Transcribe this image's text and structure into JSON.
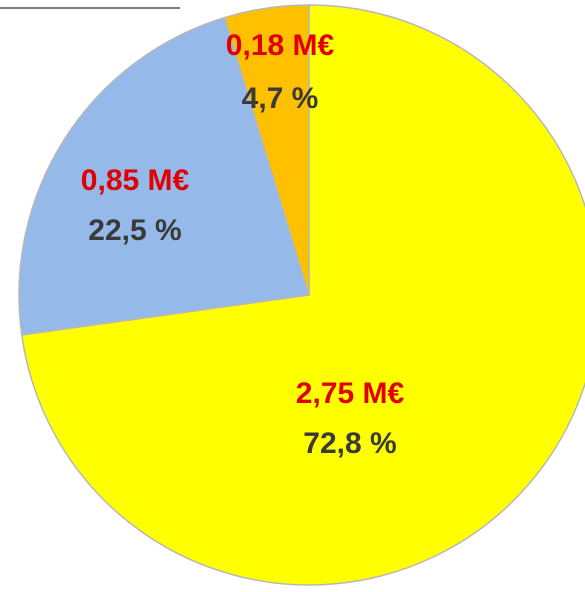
{
  "chart_data": {
    "type": "pie",
    "categories": [
      null,
      null,
      null
    ],
    "values": [
      72.8,
      22.5,
      4.7
    ],
    "value_labels": [
      "72,8 %",
      "22,5 %",
      "4,7 %"
    ],
    "amounts": [
      2.75,
      0.85,
      0.18
    ],
    "amount_labels": [
      "2,75 M€",
      "0,85 M€",
      "0,18 M€"
    ],
    "colors": [
      "#ffff00",
      "#95b9e8",
      "#ffc000"
    ]
  }
}
